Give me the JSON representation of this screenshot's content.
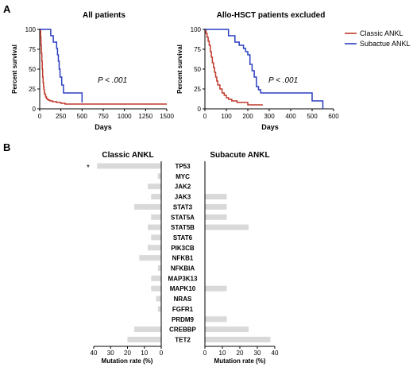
{
  "chart_data": [
    {
      "type": "line",
      "panel_letter": "A",
      "title": "All patients",
      "xlabel": "Days",
      "ylabel": "Percent survival",
      "xlim": [
        0,
        1500
      ],
      "ylim": [
        0,
        100
      ],
      "xticks": [
        "0",
        "250",
        "500",
        "750",
        "1000",
        "1250",
        "1500"
      ],
      "yticks": [
        "0",
        "25",
        "50",
        "75",
        "100"
      ],
      "annotation": "P < .001",
      "series": [
        {
          "name": "Classic ANKL",
          "color": "#c0392b",
          "x": [
            0,
            10,
            15,
            20,
            25,
            30,
            35,
            40,
            45,
            50,
            55,
            60,
            70,
            80,
            90,
            100,
            120,
            150,
            200,
            250,
            300,
            1200,
            1500
          ],
          "y": [
            100,
            90,
            80,
            70,
            60,
            50,
            40,
            33,
            28,
            24,
            20,
            18,
            15,
            13,
            12,
            11,
            10,
            9,
            8,
            7,
            6,
            6,
            6
          ]
        },
        {
          "name": "Subactue ANKL",
          "color": "#2a3fc0",
          "x": [
            0,
            100,
            130,
            160,
            200,
            210,
            220,
            230,
            240,
            260,
            280,
            300,
            500
          ],
          "y": [
            100,
            100,
            92,
            84,
            76,
            68,
            60,
            50,
            40,
            30,
            20,
            20,
            8
          ]
        }
      ]
    },
    {
      "type": "line",
      "title": "Allo-HSCT patients excluded",
      "xlabel": "Days",
      "ylabel": "Percent survival",
      "xlim": [
        0,
        600
      ],
      "ylim": [
        0,
        100
      ],
      "xticks": [
        "0",
        "100",
        "200",
        "300",
        "400",
        "500",
        "600"
      ],
      "yticks": [
        "0",
        "25",
        "50",
        "75",
        "100"
      ],
      "annotation": "P < .001",
      "series": [
        {
          "name": "Classic ANKL",
          "color": "#c0392b",
          "x": [
            0,
            5,
            10,
            15,
            20,
            25,
            30,
            35,
            40,
            45,
            50,
            55,
            60,
            70,
            80,
            90,
            100,
            110,
            125,
            150,
            200,
            250,
            270
          ],
          "y": [
            100,
            95,
            90,
            85,
            80,
            72,
            65,
            58,
            52,
            46,
            40,
            35,
            30,
            25,
            20,
            17,
            14,
            12,
            10,
            8,
            5,
            5,
            5
          ]
        },
        {
          "name": "Subactue ANKL",
          "color": "#2a3fc0",
          "x": [
            0,
            100,
            110,
            140,
            160,
            180,
            190,
            200,
            210,
            220,
            230,
            240,
            250,
            260,
            450,
            500,
            550
          ],
          "y": [
            100,
            100,
            92,
            84,
            80,
            76,
            72,
            68,
            56,
            48,
            40,
            28,
            24,
            20,
            20,
            10,
            0
          ]
        }
      ]
    },
    {
      "type": "bar",
      "panel_letter": "B",
      "title": "Classic ANKL",
      "orientation": "horizontal-reversed",
      "xlabel": "Mutation rate (%)",
      "xlim": [
        0,
        40
      ],
      "xticks": [
        "40",
        "30",
        "20",
        "10",
        "0"
      ],
      "categories": [
        "TP53",
        "MYC",
        "JAK2",
        "JAK3",
        "STAT3",
        "STAT5A",
        "STAT5B",
        "STAT6",
        "PIK3CB",
        "NFKB1",
        "NFKBIA",
        "MAP3K13",
        "MAPK10",
        "NRAS",
        "FGFR1",
        "PRDM9",
        "CREBBP",
        "TET2"
      ],
      "values": [
        38,
        2,
        8,
        6,
        16,
        6,
        8,
        6,
        8,
        13,
        2,
        6,
        6,
        3,
        2,
        0,
        16,
        20
      ],
      "color": "#d9d9d9",
      "annotation": "*"
    },
    {
      "type": "bar",
      "title": "Subacute ANKL",
      "orientation": "horizontal",
      "xlabel": "Mutation rate (%)",
      "xlim": [
        0,
        40
      ],
      "xticks": [
        "0",
        "10",
        "20",
        "30",
        "40"
      ],
      "categories": [
        "TP53",
        "MYC",
        "JAK2",
        "JAK3",
        "STAT3",
        "STAT5A",
        "STAT5B",
        "STAT6",
        "PIK3CB",
        "NFKB1",
        "NFKBIA",
        "MAP3K13",
        "MAPK10",
        "NRAS",
        "FGFR1",
        "PRDM9",
        "CREBBP",
        "TET2"
      ],
      "values": [
        0,
        0,
        0,
        12.5,
        12.5,
        12.5,
        25,
        0,
        0,
        0,
        0,
        0,
        12.5,
        0,
        0,
        12.5,
        25,
        37.5
      ],
      "color": "#d9d9d9"
    }
  ]
}
